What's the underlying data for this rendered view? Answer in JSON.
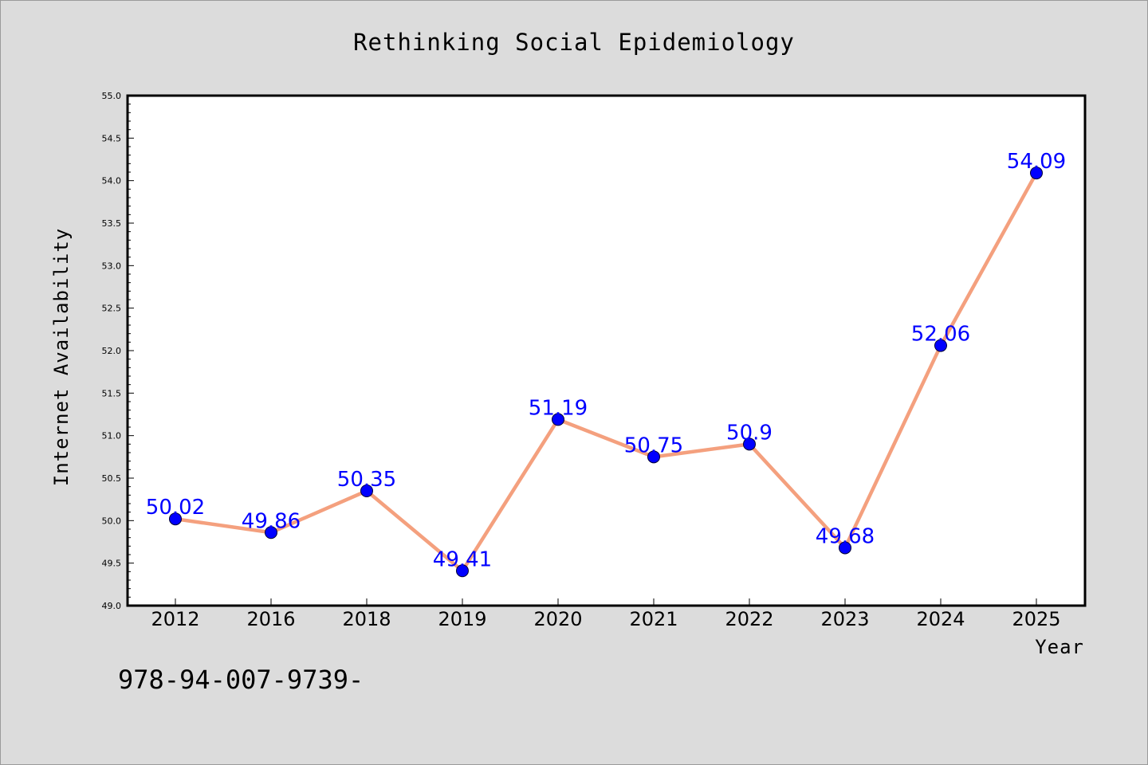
{
  "chart_data": {
    "type": "line",
    "title": "Rethinking Social Epidemiology",
    "xlabel": "Year",
    "ylabel": "Internet Availability",
    "categories": [
      "2012",
      "2016",
      "2018",
      "2019",
      "2020",
      "2021",
      "2022",
      "2023",
      "2024",
      "2025"
    ],
    "series": [
      {
        "values": [
          50.02,
          49.86,
          50.35,
          49.41,
          51.19,
          50.75,
          50.9,
          49.68,
          52.06,
          54.09
        ]
      }
    ],
    "data_labels": [
      "50.02",
      "49.86",
      "50.35",
      "49.41",
      "51.19",
      "50.75",
      "50.9",
      "49.68",
      "52.06",
      "54.09"
    ],
    "ylim": [
      49.0,
      55.0
    ],
    "y_ticks": [
      "49.0",
      "49.5",
      "50.0",
      "50.5",
      "51.0",
      "51.5",
      "52.0",
      "52.5",
      "53.0",
      "53.5",
      "54.0",
      "54.5",
      "55.0"
    ],
    "grid": false,
    "legend": "none",
    "colors": {
      "line": "#f4a07e",
      "marker": "#0000ff",
      "data_label": "#0000ff",
      "background": "#dcdcdc",
      "plot_background": "#ffffff"
    }
  },
  "footer": {
    "text": "978-94-007-9739-"
  }
}
